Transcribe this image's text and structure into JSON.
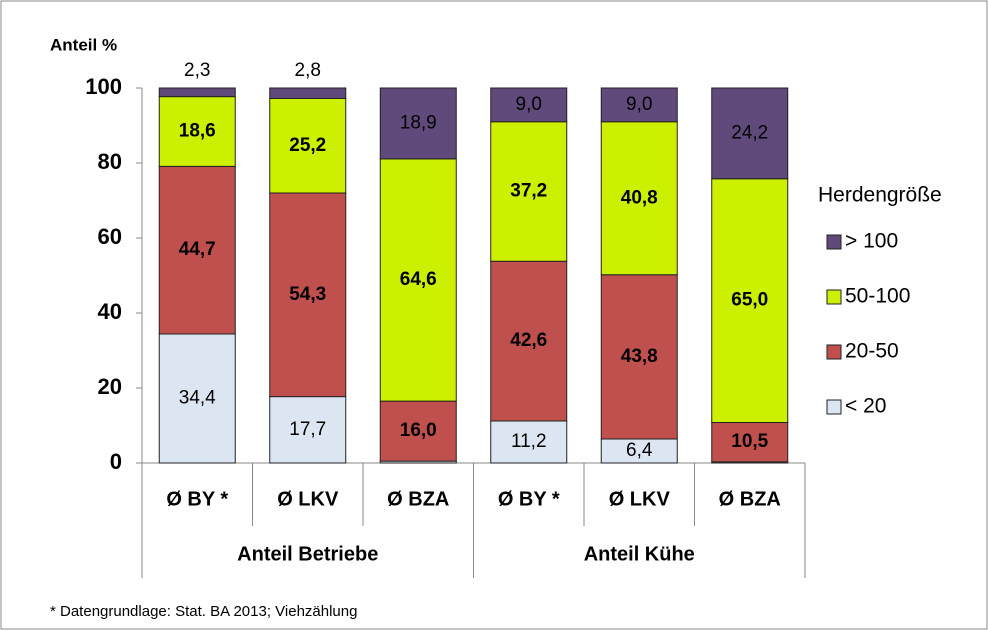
{
  "chart_data": {
    "type": "bar",
    "stacked": true,
    "ylabel": "Anteil %",
    "categories": [
      "Ø BY *",
      "Ø LKV",
      "Ø BZA",
      "Ø BY *",
      "Ø LKV",
      "Ø BZA"
    ],
    "groups": [
      "Anteil Betriebe",
      "Anteil Kühe"
    ],
    "series": [
      {
        "name": "< 20",
        "color": "#dce6f2",
        "values": [
          34.4,
          17.7,
          0.5,
          11.2,
          6.4,
          0.3
        ],
        "value_labels": [
          "34,4",
          "17,7",
          null,
          "11,2",
          "6,4",
          null
        ]
      },
      {
        "name": "20-50",
        "color": "#c0504d",
        "values": [
          44.7,
          54.3,
          16.0,
          42.6,
          43.8,
          10.5
        ],
        "value_labels": [
          "44,7",
          "54,3",
          "16,0",
          "42,6",
          "43,8",
          "10,5"
        ]
      },
      {
        "name": "50-100",
        "color": "#ccf000",
        "values": [
          18.6,
          25.2,
          64.6,
          37.2,
          40.8,
          65.0
        ],
        "value_labels": [
          "18,6",
          "25,2",
          "64,6",
          "37,2",
          "40,8",
          "65,0"
        ]
      },
      {
        "name": "> 100",
        "color": "#604a7b",
        "values": [
          2.3,
          2.8,
          18.9,
          9.0,
          9.0,
          24.2
        ],
        "value_labels": [
          "2,3",
          "2,8",
          "18,9",
          "9,0",
          "9,0",
          "24,2"
        ]
      }
    ],
    "legend_title": "Herdengröße",
    "legend_position": "right",
    "ylim": [
      0,
      100
    ],
    "yticks": [
      0,
      20,
      40,
      60,
      80,
      100
    ],
    "note": "* Datengrundlage: Stat. BA 2013; Viehzählung"
  }
}
